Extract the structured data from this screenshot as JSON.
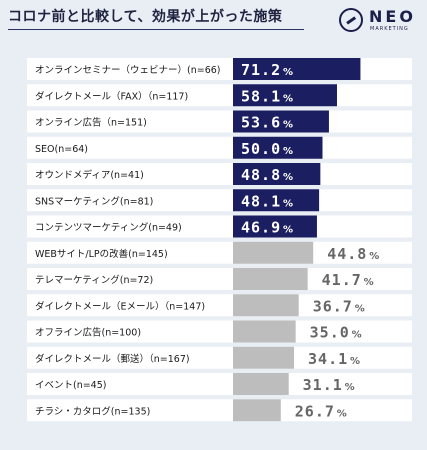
{
  "page": {
    "title": "コロナ前と比較して、効果が上がった施策",
    "brand": {
      "name": "NEO",
      "sub": "MARKETING"
    }
  },
  "colors": {
    "highlight_bar": "#1b1f61",
    "regular_bar": "#bdbdbd",
    "highlight_label": "#ffffff",
    "regular_label": "#666666",
    "row_bg": "#ffffff",
    "page_bg": "#e9edf4"
  },
  "chart_data": {
    "type": "bar",
    "orientation": "horizontal",
    "title": "コロナ前と比較して、効果が上がった施策",
    "unit": "%",
    "xlim": [
      0,
      100
    ],
    "grid": false,
    "categories": [
      "オンラインセミナー（ウェビナー）(n=66)",
      "ダイレクトメール（FAX）（n=117)",
      "オンライン広告（n=151)",
      "SEO(n=64)",
      "オウンドメディア(n=41)",
      "SNSマーケティング(n=81)",
      "コンテンツマーケティング(n=49)",
      "WEBサイト/LPの改善(n=145)",
      "テレマーケティング(n=72)",
      "ダイレクトメール（Eメール）（n=147)",
      "オフライン広告(n=100)",
      "ダイレクトメール（郵送）（n=167)",
      "イベント(n=45)",
      "チラシ・カタログ(n=135)"
    ],
    "values": [
      71.2,
      58.1,
      53.6,
      50.0,
      48.8,
      48.1,
      46.9,
      44.8,
      41.7,
      36.7,
      35.0,
      34.1,
      31.1,
      26.7
    ],
    "value_labels": [
      "71.2",
      "58.1",
      "53.6",
      "50.0",
      "48.8",
      "48.1",
      "46.9",
      "44.8",
      "41.7",
      "36.7",
      "35.0",
      "34.1",
      "31.1",
      "26.7"
    ],
    "highlighted_count": 7
  }
}
